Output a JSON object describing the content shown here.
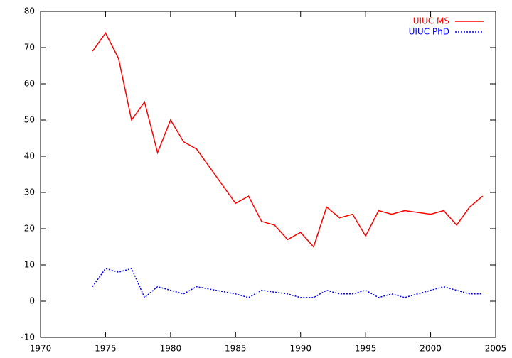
{
  "chart_data": {
    "type": "line",
    "x": [
      1974,
      1975,
      1976,
      1977,
      1978,
      1979,
      1980,
      1981,
      1982,
      1985,
      1986,
      1987,
      1988,
      1989,
      1990,
      1991,
      1992,
      1993,
      1994,
      1995,
      1996,
      1997,
      1998,
      2000,
      2001,
      2002,
      2003,
      2004
    ],
    "series": [
      {
        "name": "UIUC MS",
        "color": "#ff0000",
        "line_style": "solid",
        "values": [
          69,
          74,
          67,
          50,
          55,
          41,
          50,
          44,
          42,
          27,
          29,
          22,
          21,
          17,
          19,
          15,
          26,
          23,
          24,
          18,
          25,
          24,
          25,
          24,
          25,
          21,
          26,
          29
        ]
      },
      {
        "name": "UIUC PhD",
        "color": "#0000ff",
        "line_style": "dotted",
        "values": [
          4,
          9,
          8,
          9,
          1,
          4,
          3,
          2,
          4,
          2,
          1,
          3,
          2.5,
          2,
          1,
          1,
          3,
          2,
          2,
          3,
          1,
          2,
          1,
          3,
          4,
          3,
          2,
          2
        ]
      }
    ],
    "xlim": [
      1970,
      2005
    ],
    "xticks": [
      1970,
      1975,
      1980,
      1985,
      1990,
      1995,
      2000,
      2005
    ],
    "ylim": [
      -10,
      80
    ],
    "yticks": [
      -10,
      0,
      10,
      20,
      30,
      40,
      50,
      60,
      70,
      80
    ],
    "grid": false,
    "legend": "top right"
  }
}
